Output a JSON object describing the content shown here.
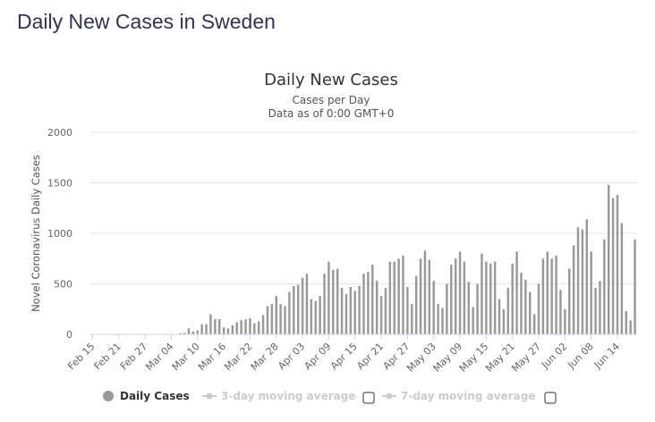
{
  "page": {
    "heading": "Daily New Cases in Sweden"
  },
  "legend": [
    {
      "label": "Daily Cases",
      "active": true,
      "color": "#999999"
    },
    {
      "label": "3-day moving average",
      "active": false,
      "color": "#cccccc"
    },
    {
      "label": "7-day moving average",
      "active": false,
      "color": "#cccccc"
    }
  ],
  "chart_data": {
    "type": "bar",
    "title": "Daily New Cases",
    "subtitle": "Cases per Day",
    "subtitle2": "Data as of 0:00 GMT+0",
    "ylabel": "Novel Coronavirus Daily Cases",
    "ylim": [
      0,
      2000
    ],
    "yticks": [
      0,
      500,
      1000,
      1500,
      2000
    ],
    "grid": true,
    "legend_position": "bottom",
    "bar_color": "#999999",
    "xtick_labels": [
      "Feb 15",
      "Feb 21",
      "Feb 27",
      "Mar 04",
      "Mar 10",
      "Mar 16",
      "Mar 22",
      "Mar 28",
      "Apr 03",
      "Apr 09",
      "Apr 15",
      "Apr 21",
      "Apr 27",
      "May 03",
      "May 09",
      "May 15",
      "May 21",
      "May 27",
      "Jun 02",
      "Jun 08",
      "Jun 14"
    ],
    "start_date": "Feb 15",
    "end_date": "Jun 15",
    "values": [
      0,
      0,
      0,
      0,
      0,
      0,
      0,
      0,
      0,
      0,
      0,
      0,
      0,
      0,
      0,
      0,
      0,
      0,
      0,
      0,
      12,
      15,
      60,
      30,
      40,
      100,
      100,
      200,
      150,
      150,
      70,
      60,
      90,
      120,
      140,
      150,
      160,
      110,
      130,
      190,
      280,
      300,
      380,
      300,
      280,
      420,
      480,
      490,
      560,
      600,
      350,
      330,
      380,
      600,
      720,
      640,
      650,
      460,
      400,
      470,
      430,
      480,
      600,
      620,
      690,
      530,
      380,
      460,
      720,
      720,
      750,
      780,
      470,
      300,
      580,
      750,
      830,
      740,
      530,
      300,
      260,
      500,
      690,
      750,
      820,
      720,
      520,
      270,
      500,
      800,
      720,
      700,
      720,
      350,
      250,
      460,
      700,
      820,
      610,
      540,
      420,
      200,
      500,
      750,
      820,
      750,
      780,
      440,
      250,
      650,
      880,
      1060,
      1040,
      1140,
      820,
      460,
      530,
      940,
      1480,
      1350,
      1380,
      1100,
      230,
      140,
      940
    ]
  }
}
